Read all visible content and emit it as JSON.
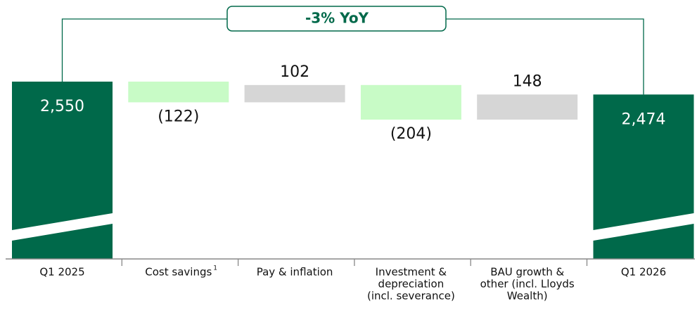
{
  "chart_data": {
    "type": "waterfall",
    "categories": [
      [
        "Q1 2025"
      ],
      [
        "Cost savings"
      ],
      [
        "Pay & inflation"
      ],
      [
        "Investment &",
        "depreciation",
        "(incl. severance)"
      ],
      [
        "BAU growth &",
        "other (incl. Lloyds",
        "Wealth)"
      ],
      [
        "Q1 2026"
      ]
    ],
    "category_superscripts": [
      null,
      "1",
      null,
      null,
      null,
      null
    ],
    "values": [
      2550,
      -122,
      102,
      -204,
      148,
      2474
    ],
    "value_labels": [
      "2,550",
      "(122)",
      "102",
      "(204)",
      "148",
      "2,474"
    ],
    "colors": {
      "total": "#00694a",
      "decrease": "#c8fbc6",
      "increase": "#d6d6d6"
    },
    "annotation": "-3% YoY"
  }
}
